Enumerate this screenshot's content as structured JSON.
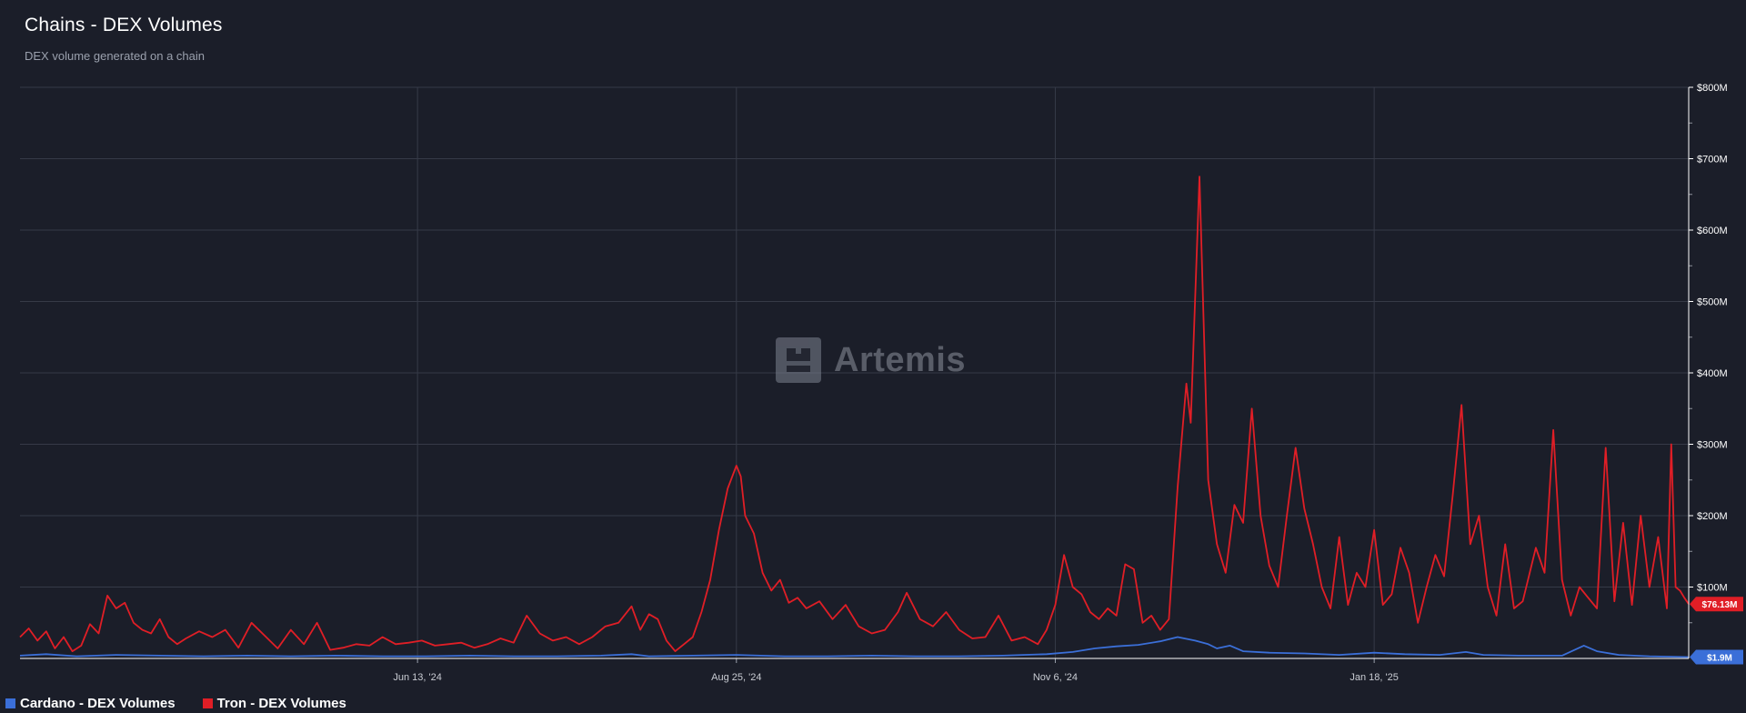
{
  "header": {
    "title": "Chains - DEX Volumes",
    "subtitle": "DEX volume generated on a chain"
  },
  "watermark": {
    "text": "Artemis",
    "icon": "artemis-logo-icon"
  },
  "legend": {
    "placement": "bottom-left",
    "items": [
      {
        "label": "Cardano - DEX Volumes",
        "color": "#3b6fd8"
      },
      {
        "label": "Tron - DEX Volumes",
        "color": "#e01e26"
      }
    ]
  },
  "chart_data": {
    "type": "line",
    "title": "Chains - DEX Volumes",
    "subtitle": "DEX volume generated on a chain",
    "x_range": [
      "2024-03-14",
      "2025-03-31"
    ],
    "x_ticks": [
      {
        "date": "2024-06-13",
        "label": "Jun 13, '24"
      },
      {
        "date": "2024-08-25",
        "label": "Aug 25, '24"
      },
      {
        "date": "2024-11-06",
        "label": "Nov 6, '24"
      },
      {
        "date": "2025-01-18",
        "label": "Jan 18, '25"
      }
    ],
    "ylim": [
      0,
      800
    ],
    "y_unit": "M USD",
    "y_ticks": [
      {
        "value": 100,
        "label": "$100M"
      },
      {
        "value": 200,
        "label": "$200M"
      },
      {
        "value": 300,
        "label": "$300M"
      },
      {
        "value": 400,
        "label": "$400M"
      },
      {
        "value": 500,
        "label": "$500M"
      },
      {
        "value": 600,
        "label": "$600M"
      },
      {
        "value": 700,
        "label": "$700M"
      },
      {
        "value": 800,
        "label": "$800M"
      }
    ],
    "grid": true,
    "y_axis_side": "right",
    "series": [
      {
        "name": "Cardano - DEX Volumes",
        "color": "#3b6fd8",
        "last_label": "$1.9M",
        "points": [
          [
            "2024-03-14",
            4
          ],
          [
            "2024-03-20",
            6
          ],
          [
            "2024-03-27",
            3
          ],
          [
            "2024-04-05",
            5
          ],
          [
            "2024-04-15",
            4
          ],
          [
            "2024-04-25",
            3
          ],
          [
            "2024-05-05",
            4
          ],
          [
            "2024-05-15",
            3
          ],
          [
            "2024-05-25",
            4
          ],
          [
            "2024-06-05",
            3
          ],
          [
            "2024-06-15",
            3
          ],
          [
            "2024-06-25",
            4
          ],
          [
            "2024-07-05",
            3
          ],
          [
            "2024-07-15",
            3
          ],
          [
            "2024-07-25",
            4
          ],
          [
            "2024-08-01",
            6
          ],
          [
            "2024-08-05",
            3
          ],
          [
            "2024-08-15",
            4
          ],
          [
            "2024-08-25",
            5
          ],
          [
            "2024-09-05",
            3
          ],
          [
            "2024-09-15",
            3
          ],
          [
            "2024-09-25",
            4
          ],
          [
            "2024-10-05",
            3
          ],
          [
            "2024-10-15",
            3
          ],
          [
            "2024-10-25",
            4
          ],
          [
            "2024-11-04",
            6
          ],
          [
            "2024-11-10",
            9
          ],
          [
            "2024-11-15",
            14
          ],
          [
            "2024-11-20",
            17
          ],
          [
            "2024-11-25",
            19
          ],
          [
            "2024-11-30",
            24
          ],
          [
            "2024-12-04",
            30
          ],
          [
            "2024-12-08",
            25
          ],
          [
            "2024-12-11",
            20
          ],
          [
            "2024-12-13",
            14
          ],
          [
            "2024-12-16",
            18
          ],
          [
            "2024-12-19",
            10
          ],
          [
            "2024-12-25",
            8
          ],
          [
            "2025-01-02",
            7
          ],
          [
            "2025-01-10",
            5
          ],
          [
            "2025-01-18",
            8
          ],
          [
            "2025-01-25",
            6
          ],
          [
            "2025-02-02",
            5
          ],
          [
            "2025-02-08",
            9
          ],
          [
            "2025-02-12",
            5
          ],
          [
            "2025-02-20",
            4
          ],
          [
            "2025-03-02",
            4
          ],
          [
            "2025-03-07",
            18
          ],
          [
            "2025-03-10",
            10
          ],
          [
            "2025-03-15",
            5
          ],
          [
            "2025-03-22",
            3
          ],
          [
            "2025-03-31",
            1.9
          ]
        ]
      },
      {
        "name": "Tron - DEX Volumes",
        "color": "#e01e26",
        "last_label": "$76.13M",
        "points": [
          [
            "2024-03-14",
            30
          ],
          [
            "2024-03-16",
            42
          ],
          [
            "2024-03-18",
            25
          ],
          [
            "2024-03-20",
            38
          ],
          [
            "2024-03-22",
            14
          ],
          [
            "2024-03-24",
            30
          ],
          [
            "2024-03-26",
            10
          ],
          [
            "2024-03-28",
            18
          ],
          [
            "2024-03-30",
            48
          ],
          [
            "2024-04-01",
            35
          ],
          [
            "2024-04-03",
            88
          ],
          [
            "2024-04-05",
            70
          ],
          [
            "2024-04-07",
            78
          ],
          [
            "2024-04-09",
            50
          ],
          [
            "2024-04-11",
            40
          ],
          [
            "2024-04-13",
            35
          ],
          [
            "2024-04-15",
            55
          ],
          [
            "2024-04-17",
            30
          ],
          [
            "2024-04-19",
            20
          ],
          [
            "2024-04-21",
            28
          ],
          [
            "2024-04-24",
            38
          ],
          [
            "2024-04-27",
            30
          ],
          [
            "2024-04-30",
            40
          ],
          [
            "2024-05-03",
            15
          ],
          [
            "2024-05-06",
            50
          ],
          [
            "2024-05-09",
            32
          ],
          [
            "2024-05-12",
            14
          ],
          [
            "2024-05-15",
            40
          ],
          [
            "2024-05-18",
            20
          ],
          [
            "2024-05-21",
            50
          ],
          [
            "2024-05-24",
            12
          ],
          [
            "2024-05-27",
            15
          ],
          [
            "2024-05-30",
            20
          ],
          [
            "2024-06-02",
            18
          ],
          [
            "2024-06-05",
            30
          ],
          [
            "2024-06-08",
            20
          ],
          [
            "2024-06-11",
            22
          ],
          [
            "2024-06-14",
            25
          ],
          [
            "2024-06-17",
            18
          ],
          [
            "2024-06-20",
            20
          ],
          [
            "2024-06-23",
            22
          ],
          [
            "2024-06-26",
            15
          ],
          [
            "2024-06-29",
            20
          ],
          [
            "2024-07-02",
            28
          ],
          [
            "2024-07-05",
            22
          ],
          [
            "2024-07-08",
            60
          ],
          [
            "2024-07-11",
            35
          ],
          [
            "2024-07-14",
            25
          ],
          [
            "2024-07-17",
            30
          ],
          [
            "2024-07-20",
            20
          ],
          [
            "2024-07-23",
            30
          ],
          [
            "2024-07-26",
            45
          ],
          [
            "2024-07-29",
            50
          ],
          [
            "2024-08-01",
            73
          ],
          [
            "2024-08-03",
            40
          ],
          [
            "2024-08-05",
            62
          ],
          [
            "2024-08-07",
            55
          ],
          [
            "2024-08-09",
            25
          ],
          [
            "2024-08-11",
            10
          ],
          [
            "2024-08-13",
            20
          ],
          [
            "2024-08-15",
            30
          ],
          [
            "2024-08-17",
            65
          ],
          [
            "2024-08-19",
            110
          ],
          [
            "2024-08-21",
            180
          ],
          [
            "2024-08-23",
            238
          ],
          [
            "2024-08-25",
            270
          ],
          [
            "2024-08-26",
            255
          ],
          [
            "2024-08-27",
            200
          ],
          [
            "2024-08-29",
            175
          ],
          [
            "2024-08-31",
            120
          ],
          [
            "2024-09-02",
            95
          ],
          [
            "2024-09-04",
            110
          ],
          [
            "2024-09-06",
            78
          ],
          [
            "2024-09-08",
            85
          ],
          [
            "2024-09-10",
            70
          ],
          [
            "2024-09-13",
            80
          ],
          [
            "2024-09-16",
            55
          ],
          [
            "2024-09-19",
            75
          ],
          [
            "2024-09-22",
            45
          ],
          [
            "2024-09-25",
            35
          ],
          [
            "2024-09-28",
            40
          ],
          [
            "2024-10-01",
            65
          ],
          [
            "2024-10-03",
            92
          ],
          [
            "2024-10-06",
            55
          ],
          [
            "2024-10-09",
            45
          ],
          [
            "2024-10-12",
            65
          ],
          [
            "2024-10-15",
            40
          ],
          [
            "2024-10-18",
            28
          ],
          [
            "2024-10-21",
            30
          ],
          [
            "2024-10-24",
            60
          ],
          [
            "2024-10-27",
            25
          ],
          [
            "2024-10-30",
            30
          ],
          [
            "2024-11-02",
            20
          ],
          [
            "2024-11-04",
            40
          ],
          [
            "2024-11-06",
            75
          ],
          [
            "2024-11-08",
            145
          ],
          [
            "2024-11-10",
            100
          ],
          [
            "2024-11-12",
            90
          ],
          [
            "2024-11-14",
            65
          ],
          [
            "2024-11-16",
            55
          ],
          [
            "2024-11-18",
            70
          ],
          [
            "2024-11-20",
            60
          ],
          [
            "2024-11-22",
            132
          ],
          [
            "2024-11-24",
            125
          ],
          [
            "2024-11-26",
            50
          ],
          [
            "2024-11-28",
            60
          ],
          [
            "2024-11-30",
            40
          ],
          [
            "2024-12-02",
            55
          ],
          [
            "2024-12-04",
            240
          ],
          [
            "2024-12-06",
            385
          ],
          [
            "2024-12-07",
            330
          ],
          [
            "2024-12-09",
            675
          ],
          [
            "2024-12-11",
            250
          ],
          [
            "2024-12-13",
            160
          ],
          [
            "2024-12-15",
            120
          ],
          [
            "2024-12-17",
            215
          ],
          [
            "2024-12-19",
            190
          ],
          [
            "2024-12-21",
            350
          ],
          [
            "2024-12-23",
            200
          ],
          [
            "2024-12-25",
            130
          ],
          [
            "2024-12-27",
            100
          ],
          [
            "2024-12-29",
            200
          ],
          [
            "2024-12-31",
            295
          ],
          [
            "2025-01-02",
            210
          ],
          [
            "2025-01-04",
            160
          ],
          [
            "2025-01-06",
            100
          ],
          [
            "2025-01-08",
            70
          ],
          [
            "2025-01-10",
            170
          ],
          [
            "2025-01-12",
            75
          ],
          [
            "2025-01-14",
            120
          ],
          [
            "2025-01-16",
            100
          ],
          [
            "2025-01-18",
            180
          ],
          [
            "2025-01-20",
            75
          ],
          [
            "2025-01-22",
            90
          ],
          [
            "2025-01-24",
            155
          ],
          [
            "2025-01-26",
            120
          ],
          [
            "2025-01-28",
            50
          ],
          [
            "2025-01-30",
            100
          ],
          [
            "2025-02-01",
            145
          ],
          [
            "2025-02-03",
            115
          ],
          [
            "2025-02-05",
            230
          ],
          [
            "2025-02-07",
            355
          ],
          [
            "2025-02-09",
            160
          ],
          [
            "2025-02-11",
            200
          ],
          [
            "2025-02-13",
            100
          ],
          [
            "2025-02-15",
            60
          ],
          [
            "2025-02-17",
            160
          ],
          [
            "2025-02-19",
            70
          ],
          [
            "2025-02-21",
            80
          ],
          [
            "2025-02-24",
            155
          ],
          [
            "2025-02-26",
            120
          ],
          [
            "2025-02-28",
            320
          ],
          [
            "2025-03-02",
            110
          ],
          [
            "2025-03-04",
            60
          ],
          [
            "2025-03-06",
            100
          ],
          [
            "2025-03-08",
            85
          ],
          [
            "2025-03-10",
            70
          ],
          [
            "2025-03-12",
            295
          ],
          [
            "2025-03-14",
            80
          ],
          [
            "2025-03-16",
            190
          ],
          [
            "2025-03-18",
            75
          ],
          [
            "2025-03-20",
            200
          ],
          [
            "2025-03-22",
            100
          ],
          [
            "2025-03-24",
            170
          ],
          [
            "2025-03-26",
            70
          ],
          [
            "2025-03-27",
            300
          ],
          [
            "2025-03-28",
            100
          ],
          [
            "2025-03-29",
            95
          ],
          [
            "2025-03-30",
            85
          ],
          [
            "2025-03-31",
            76.13
          ]
        ]
      }
    ]
  }
}
